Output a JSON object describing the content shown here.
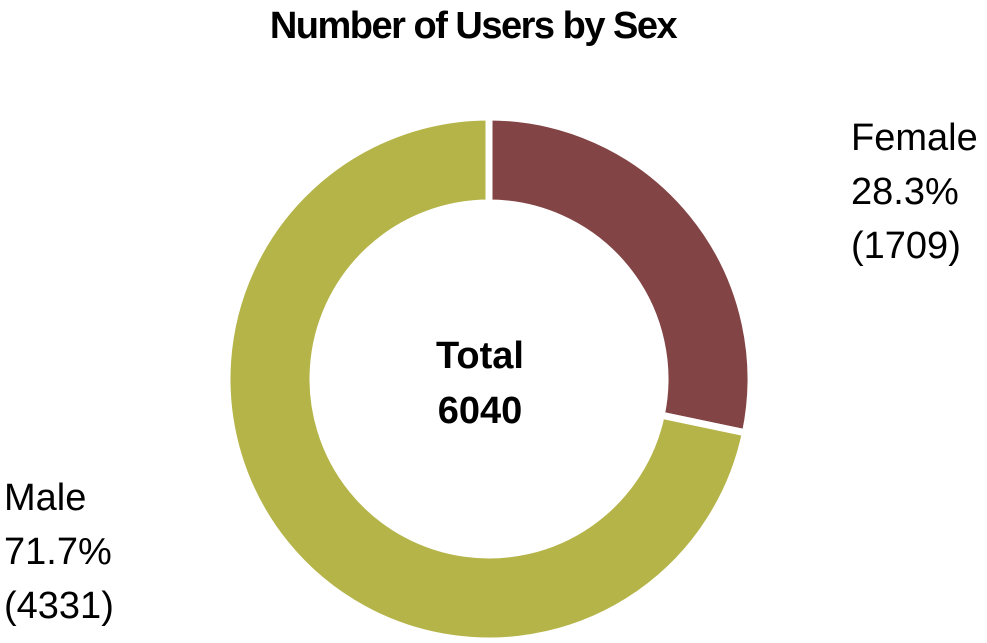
{
  "chart_data": {
    "type": "pie",
    "title": "Number of Users by Sex",
    "center": {
      "label": "Total",
      "value": "6040"
    },
    "slices": [
      {
        "name": "Female",
        "percent_label": "28.3%",
        "count_label": "(1709)",
        "value": 1709,
        "color": "#834445"
      },
      {
        "name": "Male",
        "percent_label": "71.7%",
        "count_label": "(4331)",
        "value": 4331,
        "color": "#b5b448"
      }
    ]
  }
}
